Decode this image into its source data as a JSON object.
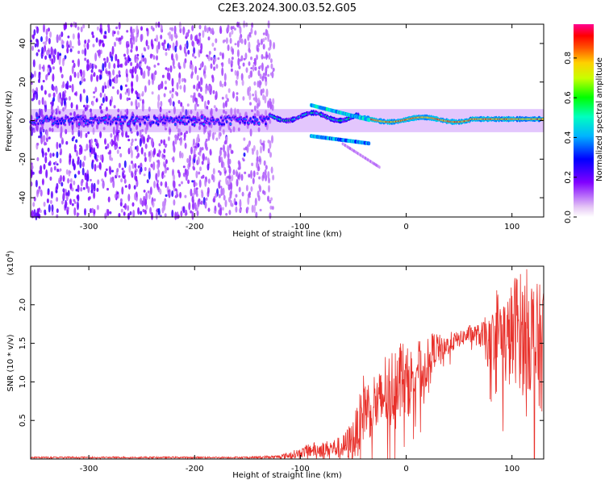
{
  "title": "C2E3.2024.300.03.52.G05",
  "chart_data": [
    {
      "type": "heatmap",
      "name": "spectrogram",
      "xlabel": "Height of straight line (km)",
      "ylabel": "Frequency (Hz)",
      "xlim": [
        -355,
        130
      ],
      "ylim": [
        -50,
        50
      ],
      "xticks": [
        -300,
        -200,
        -100,
        0,
        100
      ],
      "yticks": [
        -40,
        -20,
        0,
        20,
        40
      ],
      "colorbar": {
        "label": "Normalized spectral amplitude",
        "range": [
          0.0,
          0.97
        ],
        "ticks": [
          0.0,
          0.2,
          0.4,
          0.6,
          0.8
        ],
        "tick_labels": [
          "0.0",
          "0.2",
          "0.4",
          "0.6",
          "0.8"
        ],
        "colormap": "rainbow (white-violet-blue-cyan-green-yellow-orange-red-magenta)"
      },
      "description_points": {
        "signal_track_freq_hz": 0,
        "strongest_segment_km": [
          -40,
          125
        ],
        "split_branch_km": [
          -90,
          -35
        ],
        "split_branch_freq_hz": [
          8,
          -10
        ],
        "noise_region_km": [
          -355,
          -125
        ]
      }
    },
    {
      "type": "line",
      "name": "snr",
      "xlabel": "Height of straight line (km)",
      "ylabel": "SNR (10 * v/v)",
      "exponent_label": "(x10",
      "exponent_power": "4",
      "exponent_close": ")",
      "xlim": [
        -355,
        130
      ],
      "ylim": [
        0,
        2.5
      ],
      "xticks": [
        -300,
        -200,
        -100,
        0,
        100
      ],
      "yticks": [
        0.5,
        1.0,
        1.5,
        2.0
      ],
      "ytick_labels": [
        "0.5",
        "1.0",
        "1.5",
        "2.0"
      ],
      "color": "#e8302a",
      "series": [
        {
          "name": "SNR",
          "x": [
            -355,
            -300,
            -250,
            -200,
            -150,
            -120,
            -110,
            -100,
            -90,
            -80,
            -70,
            -60,
            -50,
            -45,
            -40,
            -35,
            -30,
            -25,
            -20,
            -15,
            -10,
            -5,
            0,
            5,
            10,
            15,
            20,
            25,
            30,
            35,
            40,
            50,
            60,
            70,
            75,
            80,
            85,
            90,
            95,
            100,
            105,
            110,
            115,
            120,
            125,
            130
          ],
          "y": [
            0.02,
            0.02,
            0.02,
            0.02,
            0.02,
            0.03,
            0.05,
            0.08,
            0.12,
            0.12,
            0.14,
            0.15,
            0.25,
            0.4,
            0.7,
            0.65,
            0.75,
            0.65,
            0.9,
            0.85,
            1.05,
            1.15,
            0.95,
            1.05,
            1.25,
            1.1,
            1.25,
            1.4,
            1.45,
            1.35,
            1.5,
            1.55,
            1.62,
            1.6,
            1.55,
            1.45,
            1.8,
            1.6,
            1.5,
            1.6,
            1.75,
            1.6,
            1.7,
            1.55,
            1.4,
            1.5
          ],
          "spread": [
            0.01,
            0.01,
            0.01,
            0.01,
            0.01,
            0.02,
            0.05,
            0.06,
            0.1,
            0.1,
            0.12,
            0.15,
            0.3,
            0.35,
            0.45,
            0.4,
            0.4,
            0.5,
            0.5,
            0.55,
            0.5,
            0.45,
            0.5,
            0.4,
            0.4,
            0.35,
            0.3,
            0.25,
            0.2,
            0.2,
            0.15,
            0.1,
            0.12,
            0.15,
            0.3,
            0.35,
            0.45,
            0.55,
            0.6,
            0.7,
            0.75,
            0.8,
            0.8,
            0.85,
            0.85,
            0.85
          ]
        }
      ]
    }
  ]
}
